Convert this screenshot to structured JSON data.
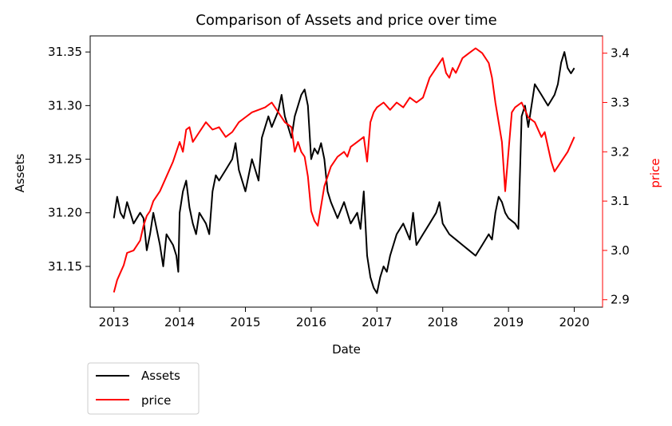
{
  "chart_data": {
    "type": "line",
    "title": "Comparison of Assets and price over time",
    "xlabel": "Date",
    "ylabel_left": "Assets",
    "ylabel_right": "price",
    "xlim": [
      2012.64,
      2020.43
    ],
    "ylim_left": [
      31.112,
      31.365
    ],
    "ylim_right": [
      2.885,
      3.435
    ],
    "x_ticks": [
      "2013",
      "2014",
      "2015",
      "2016",
      "2017",
      "2018",
      "2019",
      "2020"
    ],
    "y_ticks_left": [
      "31.15",
      "31.20",
      "31.25",
      "31.30",
      "31.35"
    ],
    "y_ticks_right": [
      "2.9",
      "3.0",
      "3.1",
      "3.2",
      "3.3",
      "3.4"
    ],
    "grid": false,
    "legend": {
      "placement": "below-left",
      "entries": [
        "Assets",
        "price"
      ]
    },
    "series": [
      {
        "name": "Assets",
        "axis": "left",
        "color": "#000000",
        "x": [
          2013.0,
          2013.05,
          2013.1,
          2013.15,
          2013.2,
          2013.3,
          2013.4,
          2013.45,
          2013.5,
          2013.55,
          2013.6,
          2013.7,
          2013.75,
          2013.8,
          2013.9,
          2013.95,
          2013.98,
          2014.0,
          2014.05,
          2014.1,
          2014.15,
          2014.2,
          2014.25,
          2014.3,
          2014.4,
          2014.45,
          2014.5,
          2014.55,
          2014.6,
          2014.7,
          2014.8,
          2014.85,
          2014.9,
          2015.0,
          2015.05,
          2015.1,
          2015.15,
          2015.2,
          2015.25,
          2015.3,
          2015.35,
          2015.4,
          2015.5,
          2015.55,
          2015.6,
          2015.65,
          2015.7,
          2015.75,
          2015.8,
          2015.85,
          2015.9,
          2015.95,
          2016.0,
          2016.05,
          2016.1,
          2016.15,
          2016.2,
          2016.25,
          2016.3,
          2016.4,
          2016.5,
          2016.6,
          2016.7,
          2016.75,
          2016.8,
          2016.85,
          2016.9,
          2016.95,
          2017.0,
          2017.05,
          2017.1,
          2017.15,
          2017.2,
          2017.3,
          2017.4,
          2017.5,
          2017.55,
          2017.6,
          2017.7,
          2017.8,
          2017.9,
          2017.95,
          2018.0,
          2018.1,
          2018.2,
          2018.3,
          2018.4,
          2018.5,
          2018.6,
          2018.7,
          2018.75,
          2018.8,
          2018.85,
          2018.9,
          2018.95,
          2019.0,
          2019.1,
          2019.15,
          2019.2,
          2019.25,
          2019.3,
          2019.35,
          2019.4,
          2019.5,
          2019.6,
          2019.7,
          2019.75,
          2019.8,
          2019.85,
          2019.9,
          2019.95,
          2020.0
        ],
        "values": [
          31.195,
          31.215,
          31.2,
          31.195,
          31.21,
          31.19,
          31.2,
          31.195,
          31.165,
          31.18,
          31.2,
          31.17,
          31.15,
          31.18,
          31.17,
          31.16,
          31.145,
          31.2,
          31.22,
          31.23,
          31.205,
          31.19,
          31.18,
          31.2,
          31.19,
          31.18,
          31.22,
          31.235,
          31.23,
          31.24,
          31.25,
          31.265,
          31.24,
          31.22,
          31.235,
          31.25,
          31.24,
          31.23,
          31.27,
          31.28,
          31.29,
          31.28,
          31.295,
          31.31,
          31.29,
          31.28,
          31.27,
          31.29,
          31.3,
          31.31,
          31.315,
          31.3,
          31.25,
          31.26,
          31.255,
          31.265,
          31.25,
          31.22,
          31.21,
          31.195,
          31.21,
          31.19,
          31.2,
          31.185,
          31.22,
          31.16,
          31.14,
          31.13,
          31.125,
          31.14,
          31.15,
          31.145,
          31.16,
          31.18,
          31.19,
          31.175,
          31.2,
          31.17,
          31.18,
          31.19,
          31.2,
          31.21,
          31.19,
          31.18,
          31.175,
          31.17,
          31.165,
          31.16,
          31.17,
          31.18,
          31.175,
          31.2,
          31.215,
          31.21,
          31.2,
          31.195,
          31.19,
          31.185,
          31.29,
          31.3,
          31.28,
          31.3,
          31.32,
          31.31,
          31.3,
          31.31,
          31.32,
          31.34,
          31.35,
          31.335,
          31.33,
          31.335
        ]
      },
      {
        "name": "price",
        "axis": "right",
        "color": "#ff0000",
        "x": [
          2013.0,
          2013.05,
          2013.1,
          2013.15,
          2013.2,
          2013.3,
          2013.4,
          2013.45,
          2013.5,
          2013.55,
          2013.6,
          2013.7,
          2013.8,
          2013.9,
          2014.0,
          2014.05,
          2014.1,
          2014.15,
          2014.2,
          2014.3,
          2014.4,
          2014.5,
          2014.6,
          2014.7,
          2014.8,
          2014.9,
          2015.0,
          2015.1,
          2015.2,
          2015.3,
          2015.4,
          2015.5,
          2015.6,
          2015.7,
          2015.75,
          2015.8,
          2015.85,
          2015.9,
          2015.95,
          2016.0,
          2016.05,
          2016.1,
          2016.15,
          2016.2,
          2016.25,
          2016.3,
          2016.4,
          2016.5,
          2016.55,
          2016.6,
          2016.7,
          2016.8,
          2016.85,
          2016.9,
          2016.95,
          2017.0,
          2017.1,
          2017.2,
          2017.3,
          2017.4,
          2017.5,
          2017.6,
          2017.7,
          2017.8,
          2017.9,
          2018.0,
          2018.05,
          2018.1,
          2018.15,
          2018.2,
          2018.3,
          2018.4,
          2018.5,
          2018.6,
          2018.7,
          2018.75,
          2018.8,
          2018.85,
          2018.9,
          2018.95,
          2019.0,
          2019.05,
          2019.1,
          2019.2,
          2019.3,
          2019.4,
          2019.5,
          2019.55,
          2019.6,
          2019.65,
          2019.7,
          2019.75,
          2019.8,
          2019.9,
          2020.0
        ],
        "values": [
          2.915,
          2.94,
          2.955,
          2.97,
          2.995,
          3.0,
          3.02,
          3.05,
          3.07,
          3.08,
          3.1,
          3.12,
          3.15,
          3.18,
          3.22,
          3.2,
          3.245,
          3.25,
          3.22,
          3.24,
          3.26,
          3.245,
          3.25,
          3.23,
          3.24,
          3.26,
          3.27,
          3.28,
          3.285,
          3.29,
          3.3,
          3.28,
          3.26,
          3.25,
          3.2,
          3.22,
          3.2,
          3.19,
          3.15,
          3.08,
          3.06,
          3.05,
          3.09,
          3.13,
          3.15,
          3.17,
          3.19,
          3.2,
          3.19,
          3.21,
          3.22,
          3.23,
          3.18,
          3.26,
          3.28,
          3.29,
          3.3,
          3.285,
          3.3,
          3.29,
          3.31,
          3.3,
          3.31,
          3.35,
          3.37,
          3.39,
          3.36,
          3.35,
          3.37,
          3.36,
          3.39,
          3.4,
          3.41,
          3.4,
          3.38,
          3.35,
          3.3,
          3.26,
          3.22,
          3.12,
          3.2,
          3.28,
          3.29,
          3.3,
          3.27,
          3.26,
          3.23,
          3.24,
          3.21,
          3.18,
          3.16,
          3.17,
          3.18,
          3.2,
          3.23
        ]
      }
    ]
  }
}
